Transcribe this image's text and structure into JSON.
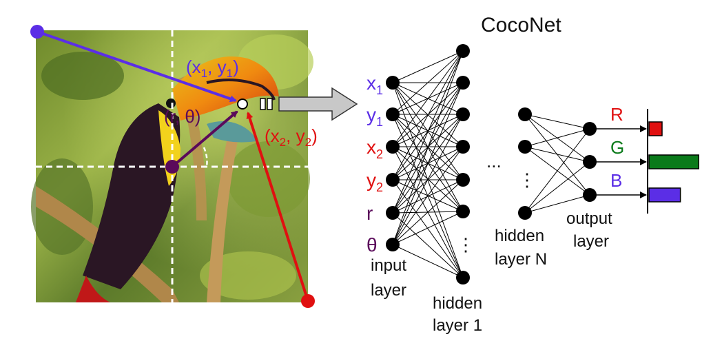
{
  "title": "CocoNet",
  "image_annotations": {
    "coord1": {
      "prefix": "(x",
      "sub": "1",
      "mid": ", y",
      "sub2": "1",
      "suffix": ")"
    },
    "coord2": {
      "prefix": "(x",
      "sub": "2",
      "mid": ", y",
      "sub2": "2",
      "suffix": ")"
    },
    "polar": "(r, θ)"
  },
  "inputs": [
    {
      "base": "x",
      "sub": "1",
      "color": "#5b2ee6"
    },
    {
      "base": "y",
      "sub": "1",
      "color": "#5b2ee6"
    },
    {
      "base": "x",
      "sub": "2",
      "color": "#e01010"
    },
    {
      "base": "y",
      "sub": "2",
      "color": "#e01010"
    },
    {
      "base": "r",
      "sub": "",
      "color": "#5a0a5a"
    },
    {
      "base": "θ",
      "sub": "",
      "color": "#5a0a5a"
    }
  ],
  "layer_labels": {
    "input": [
      "input",
      "layer"
    ],
    "hidden1": [
      "hidden",
      "layer 1"
    ],
    "hiddenN": [
      "hidden",
      "layer N"
    ],
    "output": [
      "output",
      "layer"
    ]
  },
  "ellipsis": "...",
  "vertical_ellipsis": "⋮",
  "outputs": [
    {
      "label": "R",
      "color": "#e01010",
      "value": 0.25
    },
    {
      "label": "G",
      "color": "#0a7a1a",
      "value": 0.95
    },
    {
      "label": "B",
      "color": "#5b2ee6",
      "value": 0.6
    }
  ],
  "colors": {
    "purple": "#5b2ee6",
    "red": "#e01010",
    "dark_purple": "#5a0a5a",
    "green": "#0a7a1a"
  }
}
